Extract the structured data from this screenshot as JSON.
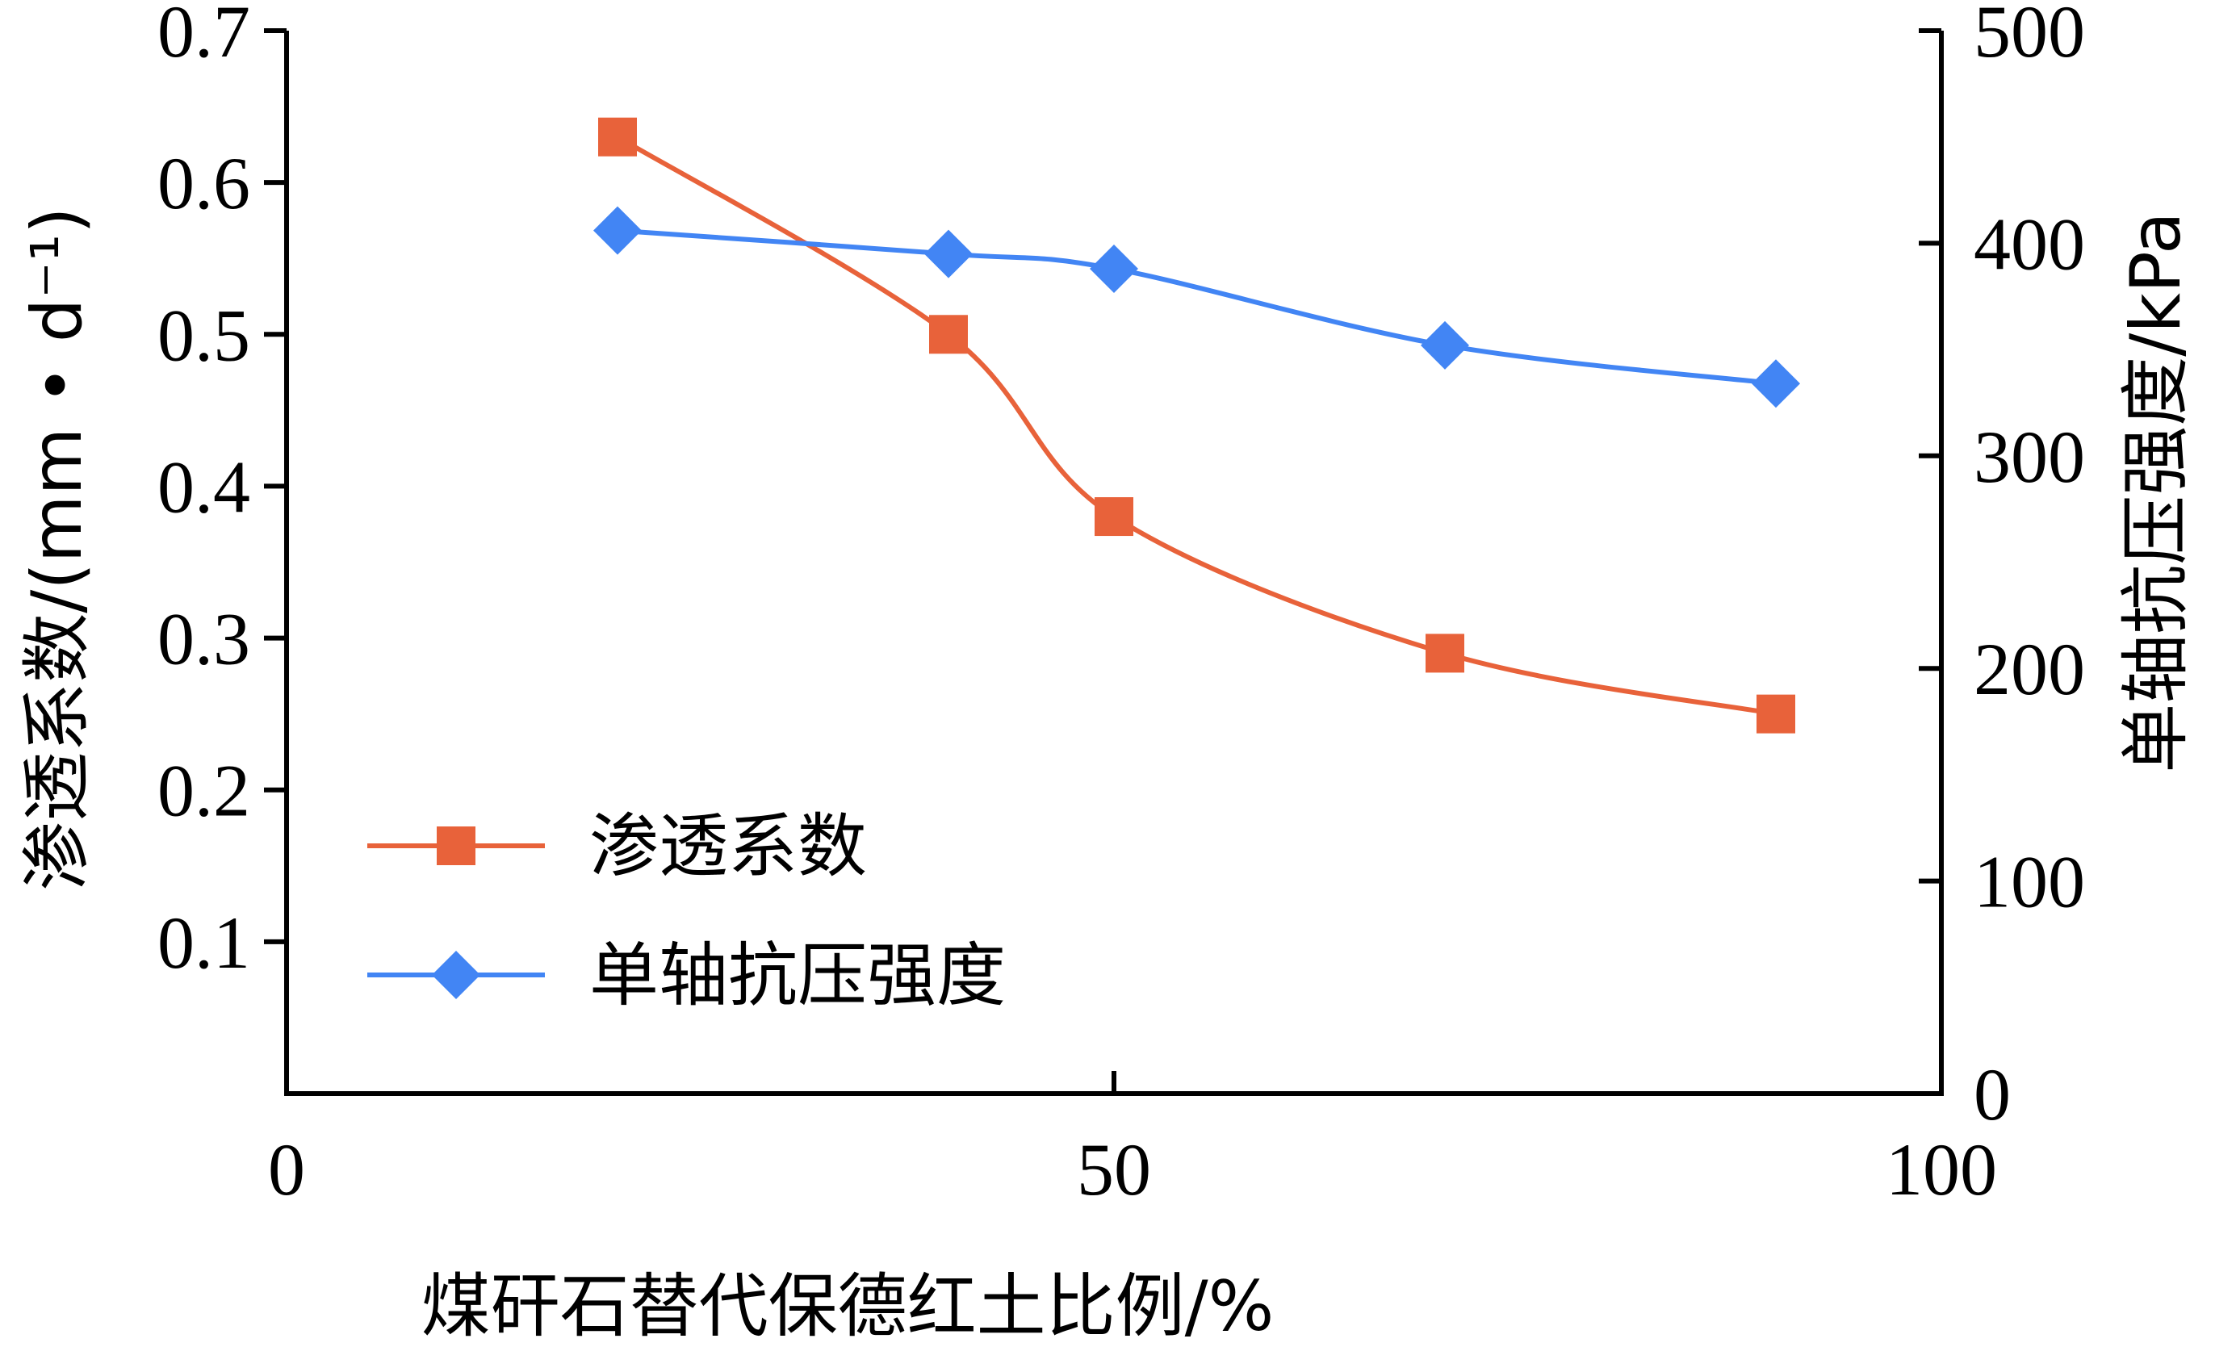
{
  "chart_data": {
    "type": "line",
    "x": [
      20,
      40,
      50,
      70,
      90
    ],
    "xlabel": "煤矸石替代保德红土比例/%",
    "xlim": [
      0,
      100
    ],
    "xticks": [
      "0",
      "50",
      "100"
    ],
    "ylabel_left": "渗透系数/(mm • d⁻¹)",
    "ylim_left": [
      0,
      0.7
    ],
    "yticks_left": [
      "0.1",
      "0.2",
      "0.3",
      "0.4",
      "0.5",
      "0.6",
      "0.7"
    ],
    "ylabel_right": "单轴抗压强度/kPa",
    "ylim_right": [
      0,
      500
    ],
    "yticks_right": [
      "0",
      "100",
      "200",
      "300",
      "400",
      "500"
    ],
    "legend_position": "bottom-left",
    "grid": false,
    "series": [
      {
        "name": "渗透系数",
        "axis": "left",
        "marker": "square",
        "color": "#E8623A",
        "values": [
          0.63,
          0.5,
          0.38,
          0.29,
          0.25
        ]
      },
      {
        "name": "单轴抗压强度",
        "axis": "right",
        "marker": "diamond",
        "color": "#4285F4",
        "values": [
          406,
          395,
          388,
          352,
          334
        ]
      }
    ]
  }
}
